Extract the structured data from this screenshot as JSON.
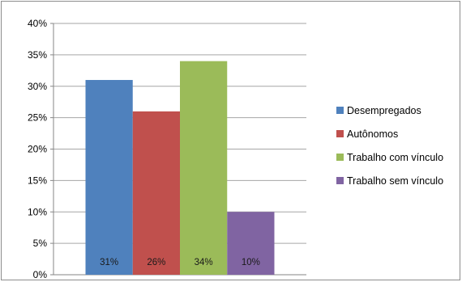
{
  "chart_data": {
    "type": "bar",
    "categories": [
      "Desempregados",
      "Autônomos",
      "Trabalho com vínculo",
      "Trabalho sem vínculo"
    ],
    "values": [
      31,
      26,
      34,
      10
    ],
    "data_labels": [
      "31%",
      "26%",
      "34%",
      "10%"
    ],
    "colors": [
      "#4f81bd",
      "#c0504d",
      "#9bbb59",
      "#8064a2"
    ],
    "ylim": [
      0,
      40
    ],
    "y_ticks": [
      "0%",
      "5%",
      "10%",
      "15%",
      "20%",
      "25%",
      "30%",
      "35%",
      "40%"
    ],
    "grid": true,
    "legend": "right",
    "title": "",
    "xlabel": "",
    "ylabel": ""
  }
}
